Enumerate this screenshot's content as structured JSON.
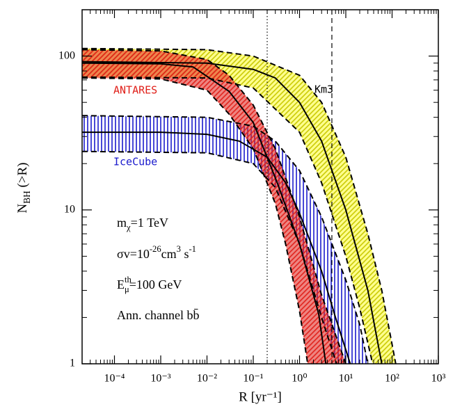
{
  "chart_data": {
    "type": "line",
    "xlabel": "R [yr⁻¹]",
    "ylabel": [
      {
        "text": "N"
      },
      {
        "text": "BH",
        "sub": true
      },
      {
        "text": " (>R)"
      }
    ],
    "log_x": true,
    "log_y": true,
    "xlim": [
      2e-05,
      1000
    ],
    "ylim": [
      1,
      200
    ],
    "xticks": [
      {
        "value": 0.0001,
        "label": "10⁻⁴"
      },
      {
        "value": 0.001,
        "label": "10⁻³"
      },
      {
        "value": 0.01,
        "label": "10⁻²"
      },
      {
        "value": 0.1,
        "label": "10⁻¹"
      },
      {
        "value": 1,
        "label": "10⁰"
      },
      {
        "value": 10,
        "label": "10¹"
      },
      {
        "value": 100,
        "label": "10²"
      },
      {
        "value": 1000,
        "label": "10³"
      }
    ],
    "yticks": [
      1,
      10,
      100
    ],
    "reference_lines": [
      {
        "x": 0.2,
        "style": "dotted"
      },
      {
        "x": 5,
        "style": "dashed"
      }
    ],
    "bands": [
      {
        "name": "Km3",
        "color": "#ffff33",
        "hatch_color": "#c8c800",
        "hatch": "diagonal",
        "label_color": "#000000",
        "curves": [
          {
            "style": "dashed",
            "x": [
              2e-05,
              0.01,
              0.1,
              1,
              3,
              10,
              30,
              60,
              120
            ],
            "values": [
              112,
              110,
              100,
              75,
              50,
              22,
              7,
              3,
              1
            ]
          },
          {
            "style": "solid",
            "x": [
              2e-05,
              0.01,
              0.1,
              0.3,
              1,
              3,
              10,
              30,
              60
            ],
            "values": [
              92,
              90,
              82,
              72,
              50,
              28,
              10,
              3,
              1
            ]
          },
          {
            "style": "dashed",
            "x": [
              2e-05,
              0.01,
              0.1,
              1,
              3,
              10,
              20,
              38
            ],
            "values": [
              73,
              72,
              62,
              32,
              15,
              5,
              2.3,
              1
            ]
          }
        ]
      },
      {
        "name": "IceCube",
        "color": "#1a1acc",
        "hatch_color": "#1a1acc",
        "hatch": "vertical",
        "label_color": "#1a1acc",
        "curves": [
          {
            "style": "dashed",
            "x": [
              2e-05,
              0.01,
              0.1,
              0.3,
              1,
              3,
              10,
              20,
              30
            ],
            "values": [
              41,
              40,
              35,
              28,
              18,
              9,
              3.5,
              1.8,
              1
            ]
          },
          {
            "style": "solid",
            "x": [
              2e-05,
              0.001,
              0.01,
              0.05,
              0.2,
              0.5,
              1,
              3,
              6,
              12.5
            ],
            "values": [
              32,
              32,
              31,
              28,
              22,
              15,
              9.5,
              4,
              2,
              1
            ]
          },
          {
            "style": "dashed",
            "x": [
              2e-05,
              0.01,
              0.1,
              0.3,
              1,
              3,
              6.3
            ],
            "values": [
              24,
              23.5,
              20,
              14,
              6,
              2,
              1
            ]
          }
        ]
      },
      {
        "name": "ANTARES",
        "color": "#e0201a",
        "hatch_color": "#e0201a",
        "hatch": "diagonal",
        "label_color": "#e0201a",
        "curves": [
          {
            "style": "dashed",
            "x": [
              2e-05,
              0.001,
              0.01,
              0.03,
              0.1,
              0.3,
              1,
              3,
              10
            ],
            "values": [
              110,
              108,
              95,
              75,
              48,
              25,
              9,
              2.8,
              1
            ]
          },
          {
            "style": "solid",
            "x": [
              2e-05,
              0.001,
              0.005,
              0.03,
              0.1,
              0.33,
              1,
              2.6,
              3.7
            ],
            "values": [
              90,
              89,
              85,
              59,
              37,
              15,
              6,
              2.1,
              1
            ]
          },
          {
            "style": "dashed",
            "x": [
              2e-05,
              0.001,
              0.01,
              0.03,
              0.1,
              0.3,
              0.5,
              1,
              1.5
            ],
            "values": [
              72,
              71,
              60,
              42,
              25,
              11,
              6,
              2.2,
              1
            ]
          }
        ]
      }
    ],
    "annotations": [
      [
        {
          "text": "m"
        },
        {
          "text": "χ",
          "sub": true
        },
        {
          "text": "=1 TeV"
        }
      ],
      [
        {
          "text": "σv=10"
        },
        {
          "text": "-26",
          "sup": true
        },
        {
          "text": "cm"
        },
        {
          "text": "3",
          "sup": true
        },
        {
          "text": " s"
        },
        {
          "text": "-1",
          "sup": true
        }
      ],
      [
        {
          "text": "E"
        },
        {
          "text": "th",
          "sup": true
        },
        {
          "text": "μ",
          "sub": true,
          "stack": true
        },
        {
          "text": "=100 GeV"
        }
      ],
      [
        {
          "text": "Ann. channel bb̄"
        }
      ]
    ]
  }
}
